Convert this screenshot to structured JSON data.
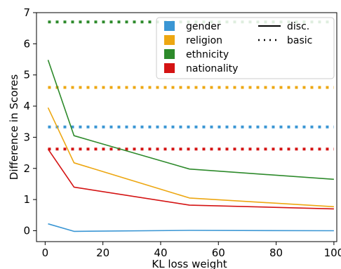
{
  "chart_data": {
    "type": "line",
    "xlabel": "KL loss weight",
    "ylabel": "Difference in Scores",
    "xlim": [
      -3,
      101
    ],
    "ylim": [
      -0.35,
      7
    ],
    "xticks": [
      0,
      20,
      40,
      60,
      80,
      100
    ],
    "yticks": [
      0,
      1,
      2,
      3,
      4,
      5,
      6,
      7
    ],
    "legend_position": "top-right",
    "series": [
      {
        "name": "gender",
        "color": "#3a96d4",
        "style": "solid",
        "x": [
          1,
          10,
          50,
          100
        ],
        "y": [
          0.22,
          -0.02,
          0.01,
          0.0
        ]
      },
      {
        "name": "religion",
        "color": "#eda712",
        "style": "solid",
        "x": [
          1,
          10,
          50,
          100
        ],
        "y": [
          3.95,
          2.18,
          1.05,
          0.77
        ]
      },
      {
        "name": "ethnicity",
        "color": "#2d8a2b",
        "style": "solid",
        "x": [
          1,
          10,
          50,
          100
        ],
        "y": [
          5.48,
          3.05,
          1.98,
          1.65
        ]
      },
      {
        "name": "nationality",
        "color": "#d41313",
        "style": "solid",
        "x": [
          1,
          10,
          50,
          100
        ],
        "y": [
          2.62,
          1.4,
          0.82,
          0.7
        ]
      }
    ],
    "baselines": [
      {
        "category": "gender",
        "color": "#3a96d4",
        "style": "dotted",
        "y": 3.33,
        "x": [
          1,
          100
        ]
      },
      {
        "category": "religion",
        "color": "#eda712",
        "style": "dotted",
        "y": 4.6,
        "x": [
          1,
          100
        ]
      },
      {
        "category": "ethnicity",
        "color": "#2d8a2b",
        "style": "dotted",
        "y": 6.7,
        "x": [
          1,
          100
        ]
      },
      {
        "category": "nationality",
        "color": "#d41313",
        "style": "dotted",
        "y": 2.62,
        "x": [
          1,
          100
        ]
      }
    ],
    "legend": {
      "colors": [
        {
          "label": "gender",
          "color": "#3a96d4"
        },
        {
          "label": "religion",
          "color": "#eda712"
        },
        {
          "label": "ethnicity",
          "color": "#2d8a2b"
        },
        {
          "label": "nationality",
          "color": "#d41313"
        }
      ],
      "styles": [
        {
          "label": "disc.",
          "style": "solid"
        },
        {
          "label": "basic",
          "style": "dotted"
        }
      ]
    }
  }
}
